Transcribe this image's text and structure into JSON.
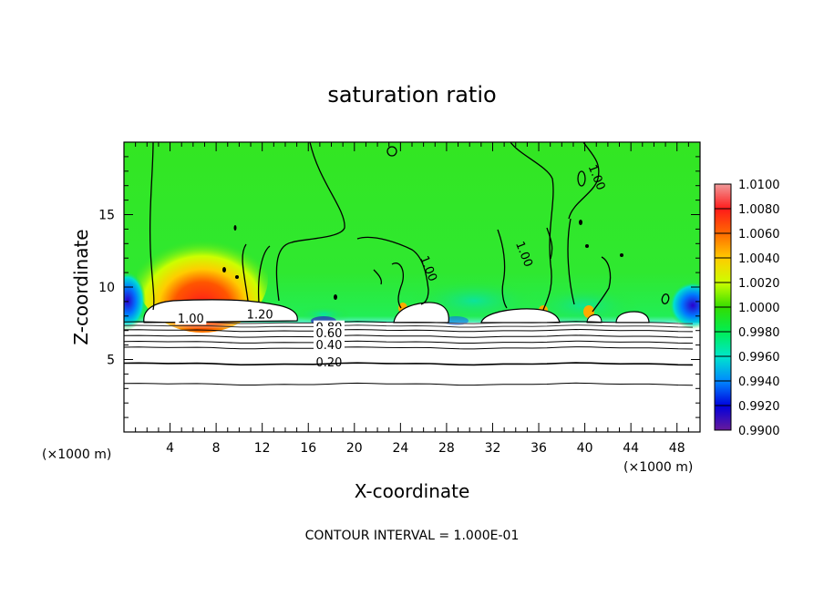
{
  "chart_data": {
    "type": "heatmap",
    "title": "saturation ratio",
    "xlabel": "X-coordinate",
    "ylabel": "Z-coordinate",
    "x_unit": "(×1000 m)",
    "y_unit": "(×1000 m)",
    "footer": "CONTOUR INTERVAL = 1.000E-01",
    "xlim": [
      0,
      50
    ],
    "ylim": [
      0,
      20
    ],
    "x_ticks": [
      4,
      8,
      12,
      16,
      20,
      24,
      28,
      32,
      36,
      40,
      44,
      48
    ],
    "y_ticks": [
      5,
      10,
      15
    ],
    "colorbar": {
      "levels": [
        "1.0100",
        "1.0080",
        "1.0060",
        "1.0040",
        "1.0020",
        "1.0000",
        "0.9980",
        "0.9960",
        "0.9940",
        "0.9920",
        "0.9900"
      ],
      "colors": [
        "#f09a9a",
        "#ff1a1a",
        "#ff6a00",
        "#ffcc00",
        "#ccff00",
        "#33dd00",
        "#00ee55",
        "#00e6cc",
        "#0088ff",
        "#0000dd",
        "#6a1a99"
      ]
    },
    "contour_labels": [
      {
        "text": "1.00",
        "x": 5.8,
        "z": 7.6
      },
      {
        "text": "1.20",
        "x": 11.8,
        "z": 7.9
      },
      {
        "text": "0.80",
        "x": 17.8,
        "z": 7.0
      },
      {
        "text": "0.60",
        "x": 17.8,
        "z": 6.6
      },
      {
        "text": "0.40",
        "x": 17.8,
        "z": 5.8
      },
      {
        "text": "0.20",
        "x": 17.8,
        "z": 4.6
      },
      {
        "text": "1.00",
        "x": 26.2,
        "z": 11.2
      },
      {
        "text": "1.00",
        "x": 34.5,
        "z": 12.2
      },
      {
        "text": "1.00",
        "x": 40.8,
        "z": 17.5
      }
    ],
    "contour_levels_below": [
      0.2,
      0.3,
      0.4,
      0.5,
      0.6,
      0.7,
      0.8,
      0.9
    ],
    "contour_heights_km": [
      3.3,
      4.7,
      5.8,
      6.2,
      6.6,
      7.0,
      7.3,
      7.55
    ]
  }
}
